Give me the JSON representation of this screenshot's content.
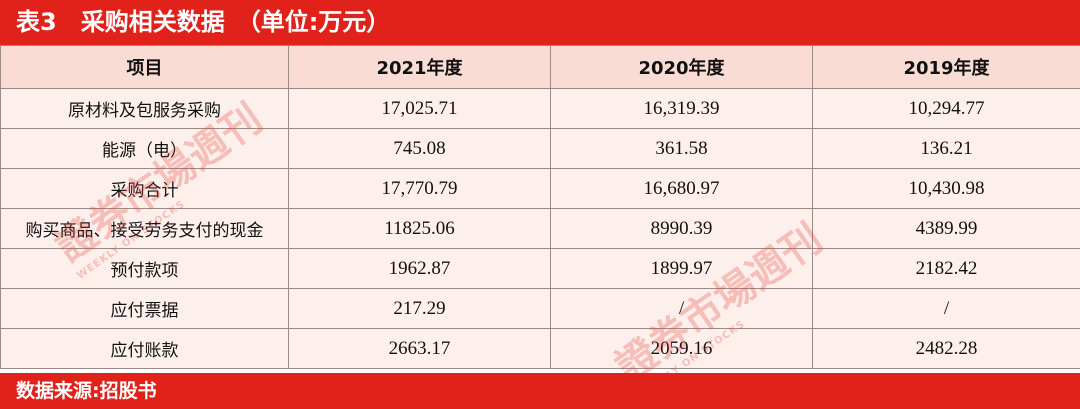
{
  "header": {
    "title": "表3　采购相关数据　（单位:万元）"
  },
  "table": {
    "columns": [
      "项目",
      "2021年度",
      "2020年度",
      "2019年度"
    ],
    "rows": [
      [
        "原材料及包服务采购",
        "17,025.71",
        "16,319.39",
        "10,294.77"
      ],
      [
        "能源（电）",
        "745.08",
        "361.58",
        "136.21"
      ],
      [
        "采购合计",
        "17,770.79",
        "16,680.97",
        "10,430.98"
      ],
      [
        "购买商品、接受劳务支付的现金",
        "11825.06",
        "8990.39",
        "4389.99"
      ],
      [
        "预付款项",
        "1962.87",
        "1899.97",
        "2182.42"
      ],
      [
        "应付票据",
        "217.29",
        "/",
        "/"
      ],
      [
        "应付账款",
        "2663.17",
        "2059.16",
        "2482.28"
      ]
    ]
  },
  "watermark": {
    "text": "證券市場週刊",
    "subtext": "WEEKLY ON STOCKS"
  },
  "footer": {
    "source": "数据来源:招股书"
  }
}
